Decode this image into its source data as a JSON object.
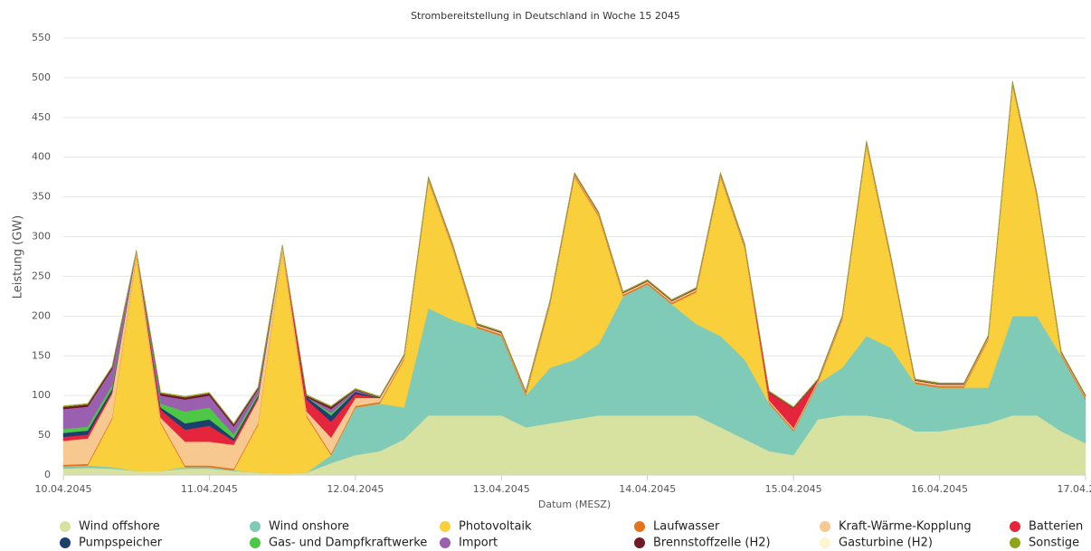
{
  "chart_data": {
    "type": "stacked-area",
    "title": "Strombereitstellung in Deutschland in Woche 15 2045",
    "y_label": "Leistung (GW)",
    "x_label": "Datum (MESZ)",
    "ylim": [
      0,
      550
    ],
    "yticks": [
      0,
      50,
      100,
      150,
      200,
      250,
      300,
      350,
      400,
      450,
      500,
      550
    ],
    "grid": true,
    "legend": "bottom",
    "categories": [
      "10.04.2045",
      null,
      null,
      null,
      null,
      null,
      "11.04.2045",
      null,
      null,
      null,
      null,
      null,
      "12.04.2045",
      null,
      null,
      null,
      null,
      null,
      "13.04.2045",
      null,
      null,
      null,
      null,
      null,
      "14.04.2045",
      null,
      null,
      null,
      null,
      null,
      "15.04.2045",
      null,
      null,
      null,
      null,
      null,
      "16.04.2045",
      null,
      null,
      null,
      null,
      null,
      "17.04.2045"
    ],
    "series": [
      {
        "name": "Wind offshore",
        "color": "#d7e2a0",
        "values": [
          8,
          9,
          8,
          5,
          5,
          8,
          8,
          5,
          3,
          2,
          3,
          15,
          25,
          30,
          45,
          75,
          75,
          75,
          75,
          60,
          65,
          70,
          75,
          75,
          75,
          75,
          75,
          60,
          45,
          30,
          25,
          70,
          75,
          75,
          70,
          55,
          55,
          60,
          65,
          75,
          75,
          55,
          40
        ]
      },
      {
        "name": "Wind onshore",
        "color": "#80cbb7",
        "values": [
          3,
          3,
          2,
          0,
          0,
          2,
          2,
          1,
          0,
          0,
          0,
          10,
          60,
          60,
          40,
          135,
          120,
          110,
          100,
          40,
          70,
          75,
          90,
          150,
          165,
          140,
          115,
          115,
          100,
          60,
          30,
          45,
          60,
          100,
          90,
          60,
          55,
          50,
          45,
          125,
          125,
          95,
          55
        ]
      },
      {
        "name": "Photovoltaik",
        "color": "#f9cf3c",
        "values": [
          0,
          0,
          60,
          270,
          60,
          0,
          0,
          0,
          60,
          280,
          70,
          0,
          0,
          0,
          60,
          160,
          90,
          0,
          0,
          0,
          80,
          230,
          160,
          0,
          0,
          0,
          40,
          200,
          140,
          0,
          0,
          0,
          60,
          240,
          110,
          0,
          0,
          0,
          60,
          290,
          150,
          0,
          0
        ]
      },
      {
        "name": "Laufwasser",
        "color": "#e4731e",
        "values": [
          2,
          2,
          2,
          2,
          2,
          2,
          2,
          2,
          2,
          2,
          2,
          2,
          2,
          2,
          2,
          2,
          2,
          2,
          2,
          2,
          2,
          2,
          2,
          2,
          2,
          2,
          2,
          2,
          2,
          2,
          2,
          2,
          2,
          2,
          2,
          2,
          2,
          2,
          2,
          2,
          2,
          2,
          2
        ]
      },
      {
        "name": "Kraft-Wärme-Kopplung",
        "color": "#f8c891",
        "values": [
          30,
          32,
          30,
          5,
          5,
          30,
          30,
          30,
          30,
          5,
          5,
          20,
          10,
          5,
          3,
          2,
          2,
          2,
          2,
          2,
          2,
          2,
          2,
          2,
          2,
          2,
          2,
          2,
          2,
          2,
          2,
          2,
          2,
          2,
          2,
          2,
          2,
          2,
          2,
          2,
          2,
          2,
          2
        ]
      },
      {
        "name": "Batterien",
        "color": "#e4253c",
        "values": [
          5,
          5,
          3,
          0,
          10,
          15,
          20,
          5,
          3,
          0,
          15,
          20,
          5,
          0,
          0,
          0,
          0,
          0,
          0,
          0,
          0,
          0,
          0,
          0,
          0,
          0,
          0,
          0,
          0,
          10,
          25,
          0,
          0,
          0,
          0,
          0,
          0,
          0,
          0,
          0,
          0,
          0,
          0
        ]
      },
      {
        "name": "Pumpspeicher",
        "color": "#1d3f6e",
        "values": [
          5,
          5,
          3,
          0,
          3,
          8,
          8,
          3,
          2,
          0,
          3,
          8,
          3,
          0,
          0,
          0,
          0,
          0,
          0,
          0,
          0,
          0,
          0,
          0,
          0,
          0,
          0,
          0,
          0,
          0,
          0,
          0,
          0,
          0,
          0,
          0,
          0,
          0,
          0,
          0,
          0,
          0,
          0
        ]
      },
      {
        "name": "Gas- und Dampfkraftwerke",
        "color": "#4cc746",
        "values": [
          5,
          5,
          5,
          0,
          5,
          15,
          15,
          5,
          3,
          0,
          0,
          3,
          0,
          0,
          0,
          0,
          0,
          0,
          0,
          0,
          0,
          0,
          0,
          0,
          0,
          0,
          0,
          0,
          0,
          0,
          0,
          0,
          0,
          0,
          0,
          0,
          0,
          0,
          0,
          0,
          0,
          0,
          0
        ]
      },
      {
        "name": "Import",
        "color": "#9b5fb0",
        "values": [
          25,
          25,
          20,
          0,
          10,
          15,
          15,
          10,
          5,
          0,
          0,
          5,
          2,
          0,
          0,
          0,
          0,
          0,
          0,
          0,
          0,
          0,
          0,
          0,
          0,
          0,
          0,
          0,
          0,
          0,
          0,
          0,
          0,
          0,
          0,
          0,
          0,
          0,
          0,
          0,
          0,
          0,
          0
        ]
      },
      {
        "name": "Brennstoffzelle (H2)",
        "color": "#6e1b26",
        "values": [
          3,
          3,
          3,
          0,
          3,
          3,
          3,
          3,
          2,
          0,
          2,
          3,
          1,
          1,
          1,
          1,
          1,
          1,
          1,
          1,
          1,
          1,
          1,
          1,
          1,
          1,
          1,
          1,
          1,
          1,
          1,
          1,
          1,
          1,
          1,
          1,
          1,
          1,
          1,
          1,
          1,
          1,
          1
        ]
      },
      {
        "name": "Gasturbine (H2)",
        "color": "#fdf6cf",
        "values": [
          0,
          0,
          0,
          0,
          0,
          0,
          0,
          0,
          0,
          0,
          0,
          0,
          0,
          0,
          0,
          0,
          0,
          0,
          0,
          0,
          0,
          0,
          0,
          0,
          0,
          0,
          0,
          0,
          0,
          0,
          0,
          0,
          0,
          0,
          0,
          0,
          0,
          0,
          0,
          0,
          0,
          0,
          0
        ]
      },
      {
        "name": "Sonstige",
        "color": "#8fa31b",
        "values": [
          1,
          1,
          1,
          1,
          1,
          1,
          1,
          1,
          1,
          1,
          1,
          1,
          1,
          1,
          1,
          1,
          1,
          1,
          1,
          1,
          1,
          1,
          1,
          1,
          1,
          1,
          1,
          1,
          1,
          1,
          1,
          1,
          1,
          1,
          1,
          1,
          1,
          1,
          1,
          1,
          1,
          1,
          1
        ]
      }
    ]
  }
}
